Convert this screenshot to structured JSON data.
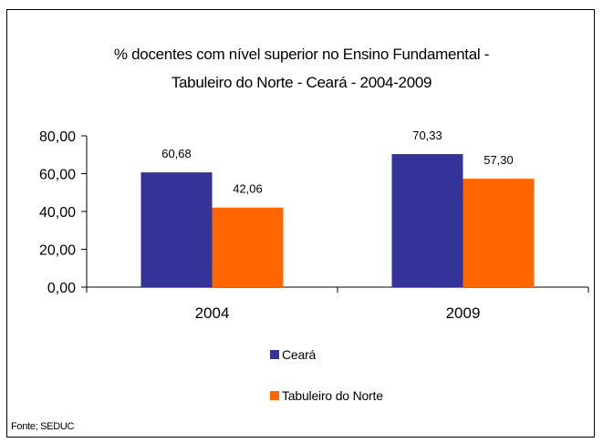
{
  "chart_data": {
    "type": "bar",
    "title_lines": [
      "% docentes com nível  superior no Ensino Fundamental  -",
      "Tabuleiro do Norte -  Ceará - 2004-2009"
    ],
    "categories": [
      "2004",
      "2009"
    ],
    "series": [
      {
        "name": "Ceará",
        "color": "#333399",
        "values": [
          60.68,
          70.33
        ],
        "labels": [
          "60,68",
          "70,33"
        ]
      },
      {
        "name": "Tabuleiro do Norte",
        "color": "#ff6600",
        "values": [
          42.06,
          57.3
        ],
        "labels": [
          "42,06",
          "57,30"
        ]
      }
    ],
    "ylim": [
      0,
      80
    ],
    "yticks": [
      0,
      20,
      40,
      60,
      80
    ],
    "ytick_labels": [
      "0,00",
      "20,00",
      "40,00",
      "60,00",
      "80,00"
    ],
    "grid": false,
    "legend_position": "bottom"
  },
  "source_note": "Fonte; SEDUC"
}
